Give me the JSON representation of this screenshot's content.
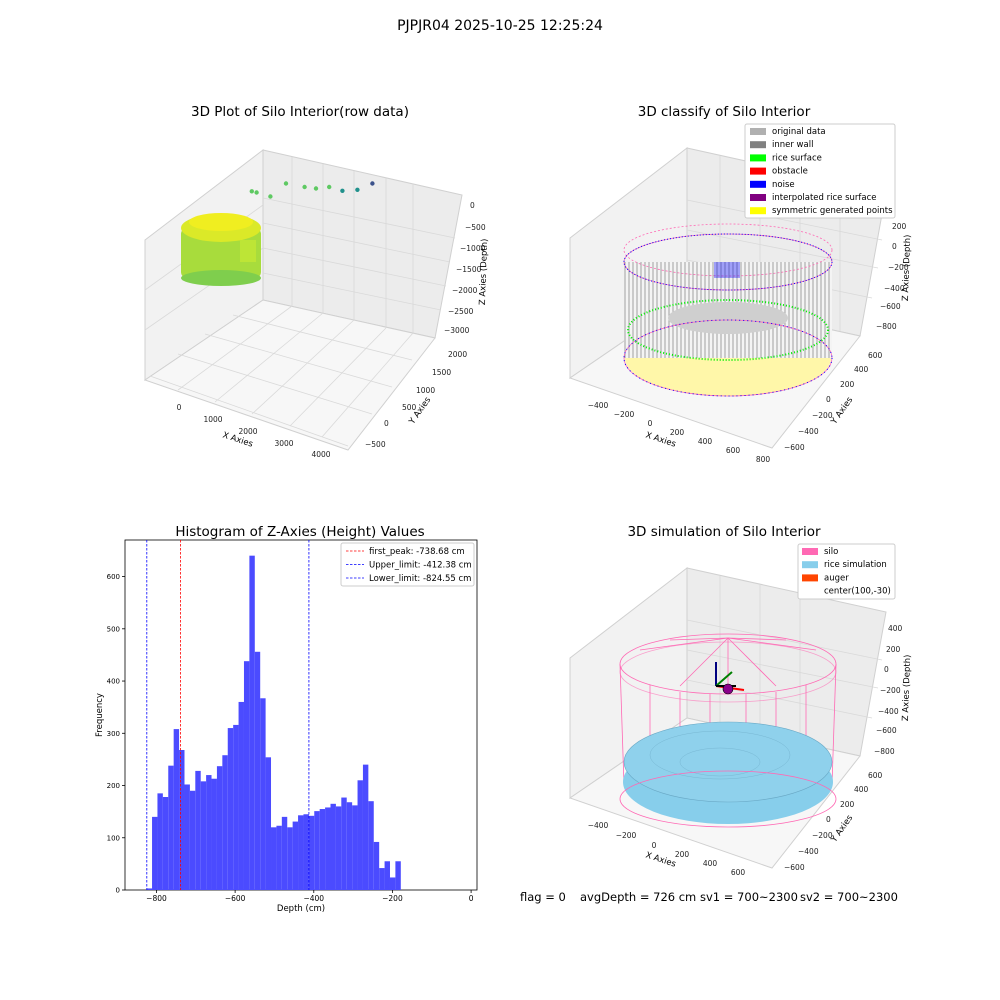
{
  "figure": {
    "suptitle": "PJPJR04 2025-10-25 12:25:24",
    "status": {
      "flag": "flag = 0",
      "avg_depth": "avgDepth = 726 cm",
      "sv1": "sv1 = 700~2300",
      "sv2": "sv2 = 700~2300"
    }
  },
  "colors": {
    "hist_bar": "#4b4bff",
    "first_peak_line": "#ff0000",
    "limit_line": "#0000ff",
    "pane": "#f2f2f2",
    "grid": "#d9d9d9",
    "silo": "#ff69b4",
    "rice_simulation": "#87ceeb",
    "auger": "#ff4500",
    "original_data": "#b0b0b0",
    "inner_wall": "#808080",
    "rice_surface": "#00ff00",
    "obstacle": "#ff0000",
    "noise": "#0000ff",
    "interpolated_rice_surface": "#800080",
    "symmetric_generated_points": "#ffff00"
  },
  "chart_data": [
    {
      "type": "scatter",
      "subtype": "3d",
      "title": "3D Plot of Silo Interior(row data)",
      "xlabel": "X Axies",
      "ylabel": "Y Axies",
      "zlabel": "Z Axies (Depth)",
      "x_ticks": [
        "0",
        "1000",
        "2000",
        "3000",
        "4000"
      ],
      "y_ticks": [
        "−500",
        "0",
        "500",
        "1000",
        "1500",
        "2000"
      ],
      "z_ticks": [
        "0",
        "−500",
        "−1000",
        "−1500",
        "−2000",
        "−2500",
        "−3000"
      ],
      "outlier_points": [
        {
          "x": 300,
          "y": 500,
          "z": -1050
        },
        {
          "x": 550,
          "y": 600,
          "z": -1000
        },
        {
          "x": 700,
          "y": 400,
          "z": -1100
        },
        {
          "x": 900,
          "y": 200,
          "z": -1700
        },
        {
          "x": 1300,
          "y": 100,
          "z": -1800
        },
        {
          "x": 1500,
          "y": 0,
          "z": -1900
        },
        {
          "x": 1750,
          "y": -100,
          "z": -2100
        },
        {
          "x": 2000,
          "y": -200,
          "z": -2150
        },
        {
          "x": 2300,
          "y": -300,
          "z": -2350
        },
        {
          "x": 2600,
          "y": -400,
          "z": -2700
        }
      ]
    },
    {
      "type": "scatter",
      "subtype": "3d",
      "title": "3D classify of Silo Interior",
      "xlabel": "X Axies",
      "ylabel": "Y Axies",
      "zlabel": "Z Axies (Depth)",
      "x_ticks": [
        "−400",
        "−200",
        "0",
        "200",
        "400",
        "600",
        "800"
      ],
      "y_ticks": [
        "−600",
        "−400",
        "−200",
        "0",
        "200",
        "400",
        "600"
      ],
      "z_ticks": [
        "200",
        "0",
        "−200",
        "−400",
        "−600",
        "−800"
      ],
      "legend": [
        {
          "label": "original data",
          "color_key": "original_data"
        },
        {
          "label": "inner wall",
          "color_key": "inner_wall"
        },
        {
          "label": "rice surface",
          "color_key": "rice_surface"
        },
        {
          "label": "obstacle",
          "color_key": "obstacle"
        },
        {
          "label": "noise",
          "color_key": "noise"
        },
        {
          "label": "interpolated rice surface",
          "color_key": "interpolated_rice_surface"
        },
        {
          "label": "symmetric generated points",
          "color_key": "symmetric_generated_points"
        }
      ],
      "legend_position": "top-right"
    },
    {
      "type": "bar",
      "subtype": "histogram",
      "title": "Histogram of Z-Axies (Height) Values",
      "xlabel": "Depth (cm)",
      "ylabel": "Frequency",
      "xlim": [
        -880,
        15
      ],
      "ylim": [
        0,
        670
      ],
      "x_ticks": [
        -800,
        -600,
        -400,
        -200,
        0
      ],
      "x_tick_labels": [
        "−800",
        "−600",
        "−400",
        "−200",
        "0"
      ],
      "y_ticks": [
        0,
        100,
        200,
        300,
        400,
        500,
        600
      ],
      "y_tick_labels": [
        "0",
        "100",
        "200",
        "300",
        "400",
        "500",
        "600"
      ],
      "bin_start": -825,
      "bin_width": 13.75,
      "values": [
        3,
        140,
        185,
        178,
        238,
        308,
        268,
        202,
        190,
        228,
        208,
        220,
        213,
        237,
        258,
        310,
        316,
        360,
        438,
        640,
        456,
        367,
        254,
        120,
        123,
        140,
        120,
        131,
        143,
        145,
        142,
        151,
        155,
        158,
        165,
        160,
        177,
        168,
        162,
        210,
        240,
        170,
        92,
        42,
        55,
        24,
        55
      ],
      "vlines": [
        {
          "x": -738.68,
          "style": "first",
          "label": "first_peak: -738.68 cm"
        },
        {
          "x": -412.38,
          "style": "limit",
          "label": "Upper_limit: -412.38 cm"
        },
        {
          "x": -824.55,
          "style": "limit",
          "label": "Lower_limit: -824.55 cm"
        }
      ],
      "legend_position": "top-right"
    },
    {
      "type": "scatter",
      "subtype": "3d",
      "title": "3D simulation of Silo Interior",
      "xlabel": "X Axies",
      "ylabel": "Y Axies",
      "zlabel": "Z Axies (Depth)",
      "x_ticks": [
        "−400",
        "−200",
        "0",
        "200",
        "400",
        "600"
      ],
      "y_ticks": [
        "−600",
        "−400",
        "−200",
        "0",
        "200",
        "400",
        "600"
      ],
      "z_ticks": [
        "400",
        "200",
        "0",
        "−200",
        "−400",
        "−600",
        "−800"
      ],
      "legend": [
        {
          "label": "silo",
          "color_key": "silo"
        },
        {
          "label": "rice simulation",
          "color_key": "rice_simulation"
        },
        {
          "label": "auger",
          "color_key": "auger"
        },
        {
          "label": "center(100,-30)",
          "color_key": ""
        }
      ],
      "legend_position": "top-right"
    }
  ]
}
